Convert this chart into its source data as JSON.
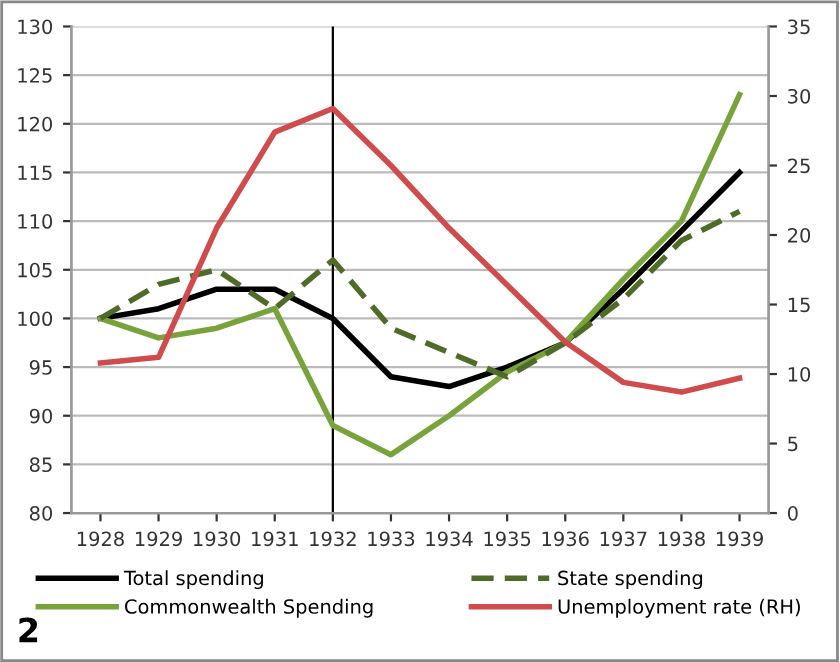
{
  "chart_data": {
    "type": "line",
    "categories": [
      "1928",
      "1929",
      "1930",
      "1931",
      "1932",
      "1933",
      "1934",
      "1935",
      "1936",
      "1937",
      "1938",
      "1939"
    ],
    "series": [
      {
        "name": "Total spending",
        "color": "#000000",
        "line_style": "solid",
        "values": [
          100,
          101,
          103,
          103,
          100,
          94,
          93,
          95,
          97.5,
          103,
          109,
          115
        ]
      },
      {
        "name": "Commonwealth Spending",
        "color": "#77a33a",
        "line_style": "solid",
        "values": [
          100,
          98,
          99,
          101,
          89,
          86,
          90,
          94.5,
          97.5,
          104,
          110,
          123
        ]
      },
      {
        "name": "State spending",
        "color": "#4f6b28",
        "line_style": "dashed",
        "values": [
          100,
          103.5,
          105,
          101,
          106,
          99,
          96.5,
          94,
          97.5,
          102,
          108,
          111
        ]
      },
      {
        "name": "Unemployment rate (RH)",
        "color": "#d04b4b",
        "line_style": "solid",
        "axis": "y2",
        "values": [
          10.8,
          11.2,
          20.5,
          27.4,
          29.1,
          25,
          20.5,
          16.4,
          12.3,
          9.4,
          8.7,
          9.7
        ]
      }
    ],
    "ylim": [
      80,
      130
    ],
    "yticks": [
      80,
      85,
      90,
      95,
      100,
      105,
      110,
      115,
      120,
      125,
      130
    ],
    "y2lim": [
      0,
      35
    ],
    "y2ticks": [
      0,
      5,
      10,
      15,
      20,
      25,
      30,
      35
    ],
    "grid": "y",
    "legend": "bottom",
    "marker": "none",
    "ref_lines": [
      {
        "axis": "x",
        "value": "1932",
        "color": "#000000"
      }
    ],
    "annotations": [
      "2"
    ]
  }
}
